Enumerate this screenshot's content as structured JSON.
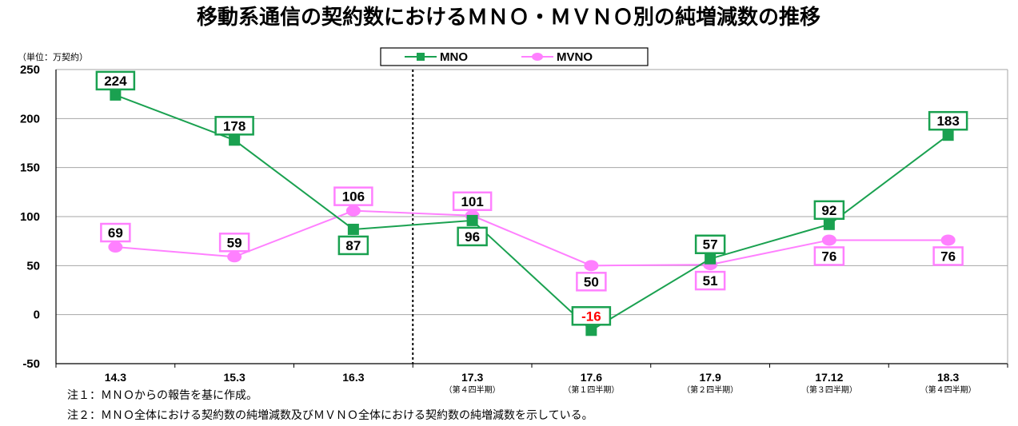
{
  "chart_data": {
    "type": "line",
    "title": "移動系通信の契約数におけるＭＮＯ・ＭＶＮＯ別の純増減数の推移",
    "unit_label": "（単位：万契約）",
    "categories": [
      "14.3",
      "15.3",
      "16.3",
      "17.3",
      "17.6",
      "17.9",
      "17.12",
      "18.3"
    ],
    "category_sublabels": [
      "",
      "",
      "",
      "（第４四半期）",
      "（第１四半期）",
      "（第２四半期）",
      "（第３四半期）",
      "（第４四半期）"
    ],
    "ylim": [
      -50,
      250
    ],
    "yticks": [
      -50,
      0,
      50,
      100,
      150,
      200,
      250
    ],
    "grid": true,
    "legend_position": "top-center",
    "divider_after_category": "16.3",
    "series": [
      {
        "name": "MNO",
        "values": [
          224,
          178,
          87,
          96,
          -16,
          57,
          92,
          183
        ],
        "label_texts": [
          "224",
          "178",
          "87",
          "96",
          "-16",
          "57",
          "92",
          "183"
        ],
        "label_positions": [
          "above",
          "above",
          "below",
          "below",
          "above",
          "above",
          "above",
          "above"
        ],
        "color": "#1aa150",
        "marker": "square"
      },
      {
        "name": "MVNO",
        "values": [
          69,
          59,
          106,
          101,
          50,
          51,
          76,
          76
        ],
        "label_texts": [
          "69",
          "59",
          "106",
          "101",
          "50",
          "51",
          "76",
          "76"
        ],
        "label_positions": [
          "above",
          "above",
          "above",
          "above",
          "below",
          "below",
          "below",
          "below"
        ],
        "color": "#ff80ff",
        "marker": "circle"
      }
    ],
    "negative_label_color": "#ff0000"
  },
  "notes": [
    "注１：ＭＮＯからの報告を基に作成。",
    "注２：ＭＮＯ全体における契約数の純増減数及びＭＶＮＯ全体における契約数の純増減数を示している。"
  ]
}
